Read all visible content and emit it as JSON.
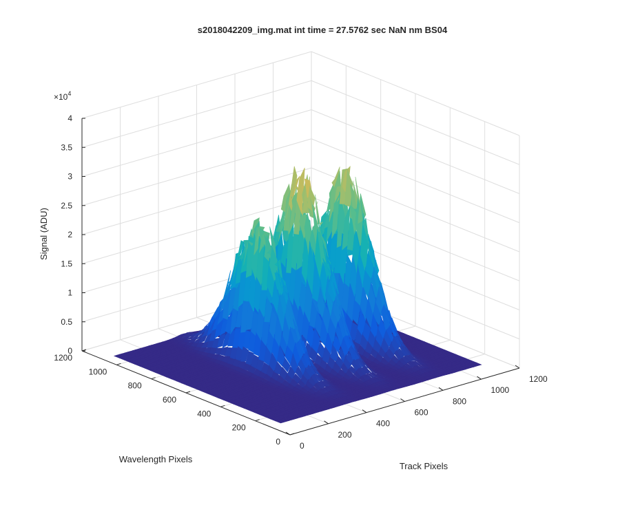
{
  "chart_data": {
    "type": "surface",
    "title": "s2018042209_img.mat int time = 27.5762 sec  NaN nm BS04",
    "xlabel": "Track Pixels",
    "ylabel": "Wavelength Pixels",
    "zlabel": "Signal (ADU)",
    "z_multiplier_label": "×10",
    "z_multiplier_exponent": "4",
    "xlim": [
      0,
      1200
    ],
    "ylim": [
      0,
      1200
    ],
    "zlim": [
      0,
      40000
    ],
    "x_ticks": [
      "0",
      "200",
      "400",
      "600",
      "800",
      "1000",
      "1200"
    ],
    "y_ticks": [
      "0",
      "200",
      "400",
      "600",
      "800",
      "1000",
      "1200"
    ],
    "z_ticks": [
      "0",
      "0.5",
      "1",
      "1.5",
      "2",
      "2.5",
      "3",
      "3.5",
      "4"
    ],
    "grid": true,
    "colormap": "parula",
    "colors": {
      "low": "#352a87",
      "mid_low": "#0f77db",
      "mid": "#10b3b1",
      "mid_high": "#88c46d",
      "high": "#f9d02f"
    },
    "peaks": [
      {
        "name": "",
        "track_center": 430,
        "wavelength_center": 650,
        "peak_signal": 24000
      },
      {
        "name": "",
        "track_center": 650,
        "wavelength_center": 650,
        "peak_signal": 30000
      },
      {
        "name": "",
        "track_center": 880,
        "wavelength_center": 650,
        "peak_signal": 28000
      }
    ]
  }
}
